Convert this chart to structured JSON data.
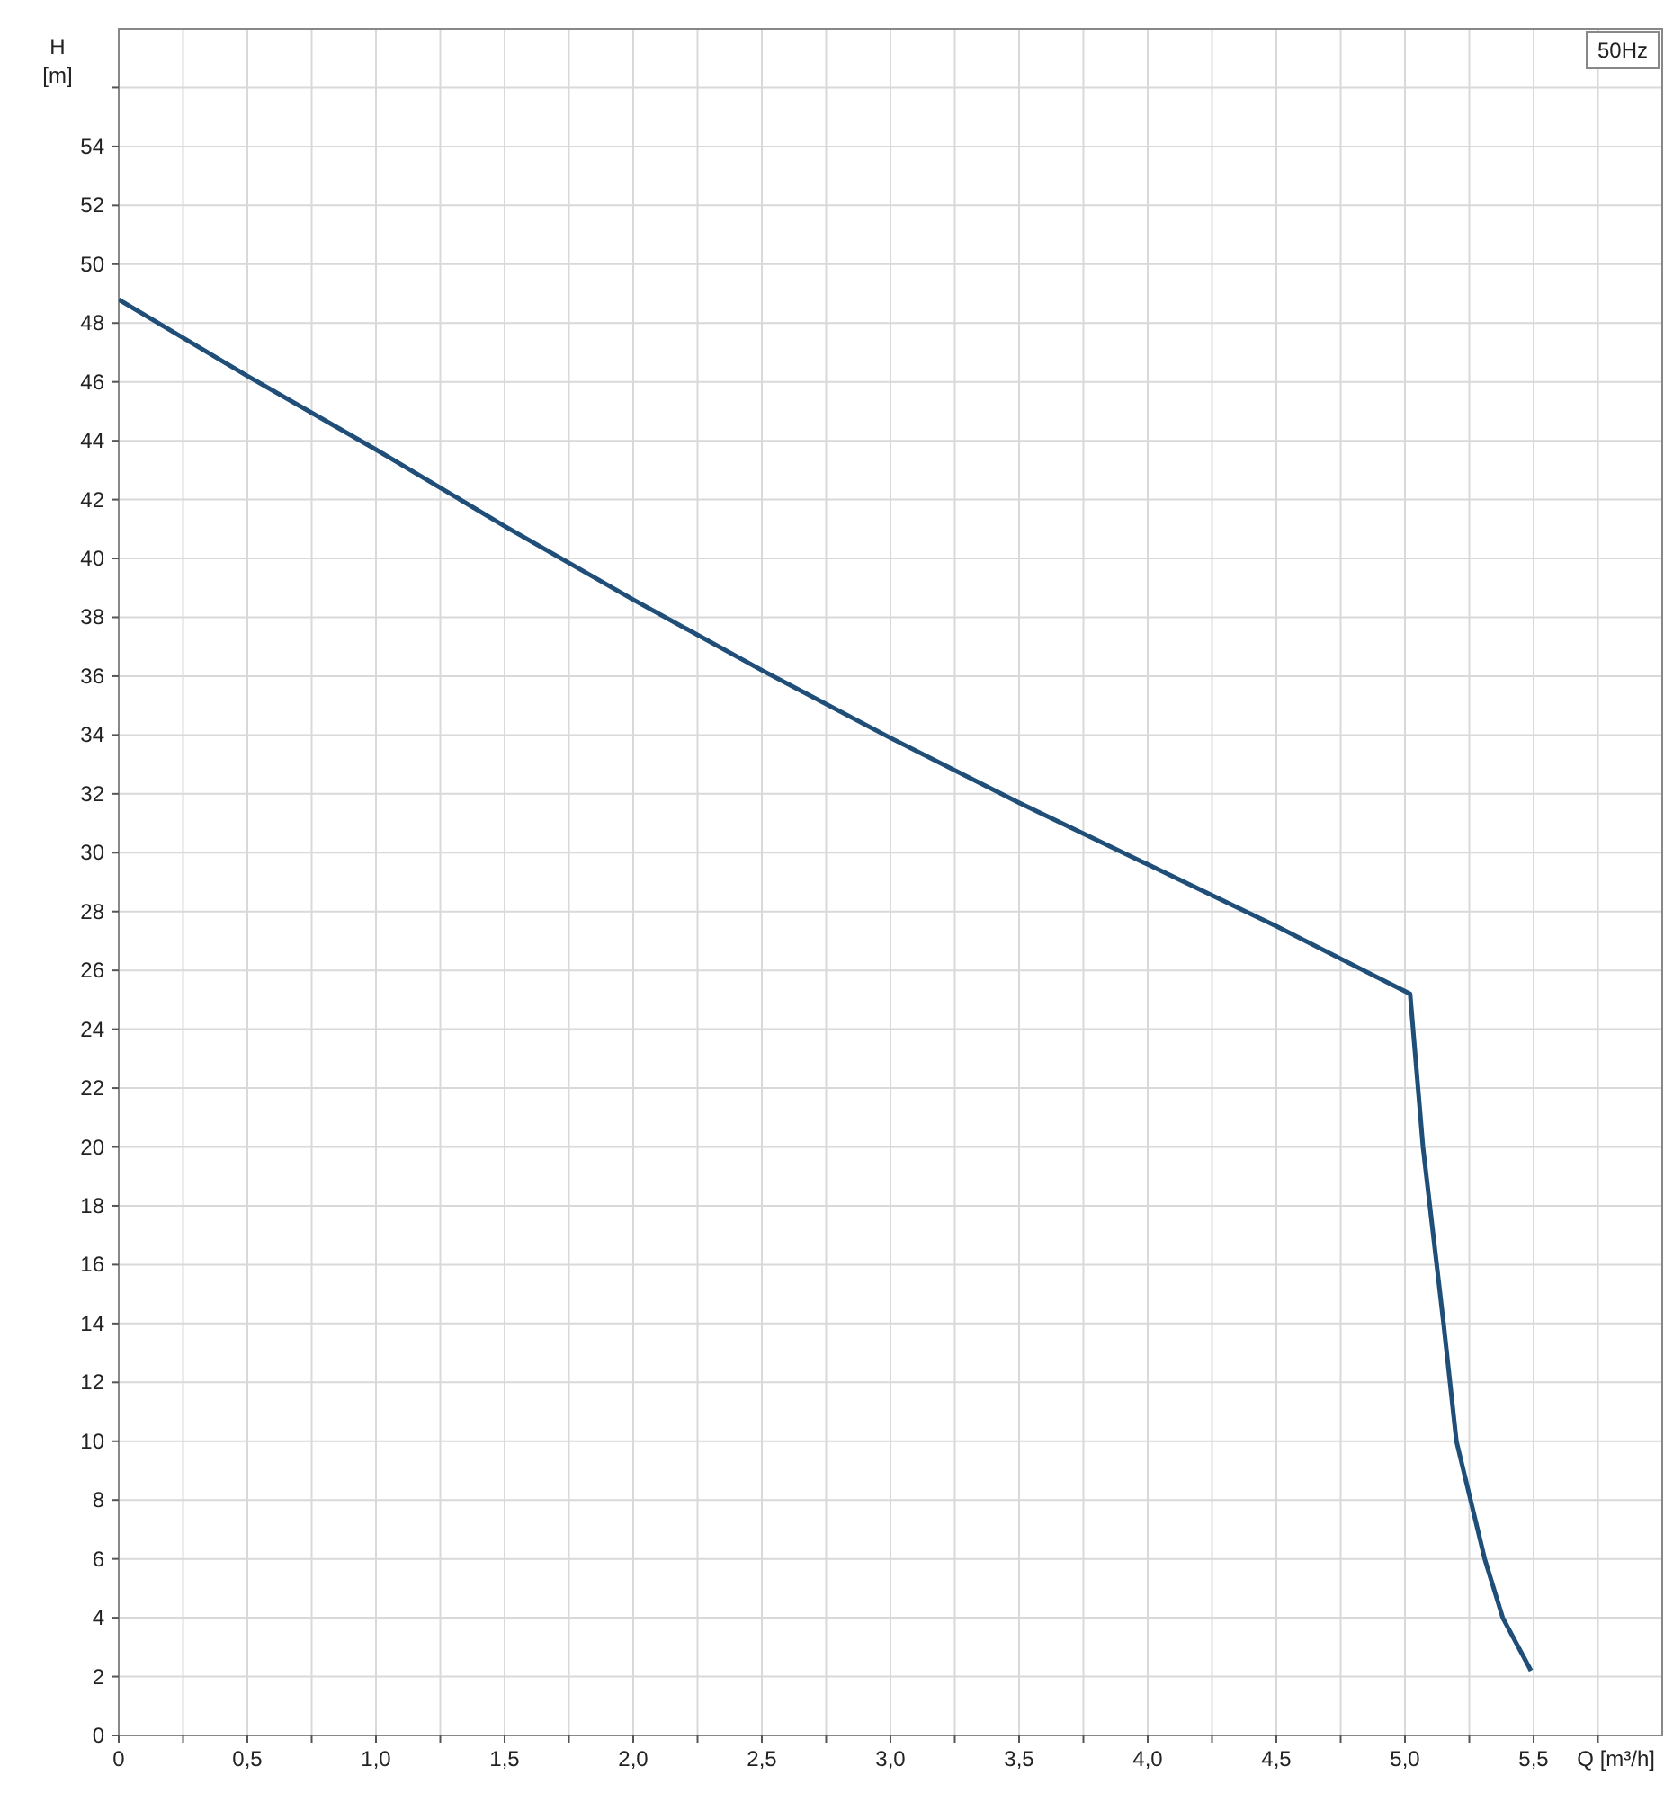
{
  "chart_data": {
    "type": "line",
    "xlabel": "Q [m³/h]",
    "ylabel": "H [m]",
    "annotations": [
      "50Hz"
    ],
    "x": [
      0,
      0.5,
      1.0,
      1.5,
      2.0,
      2.5,
      3.0,
      3.5,
      4.0,
      4.5,
      5.02,
      5.07,
      5.15,
      5.2,
      5.31,
      5.38,
      5.49
    ],
    "series": [
      {
        "color": "#1f4e79",
        "values": [
          48.8,
          46.2,
          43.7,
          41.1,
          38.6,
          36.2,
          33.9,
          31.7,
          29.6,
          27.5,
          25.2,
          20,
          14,
          10,
          6,
          4,
          2.2
        ]
      }
    ],
    "xlim": [
      0,
      6.0
    ],
    "ylim": [
      0,
      58
    ],
    "xticks": [
      {
        "value": 0,
        "label": "0"
      },
      {
        "value": 0.25,
        "label": null
      },
      {
        "value": 0.5,
        "label": "0,5"
      },
      {
        "value": 0.75,
        "label": null
      },
      {
        "value": 1,
        "label": "1,0"
      },
      {
        "value": 1.25,
        "label": null
      },
      {
        "value": 1.5,
        "label": "1,5"
      },
      {
        "value": 1.75,
        "label": null
      },
      {
        "value": 2,
        "label": "2,0"
      },
      {
        "value": 2.25,
        "label": null
      },
      {
        "value": 2.5,
        "label": "2,5"
      },
      {
        "value": 2.75,
        "label": null
      },
      {
        "value": 3,
        "label": "3,0"
      },
      {
        "value": 3.25,
        "label": null
      },
      {
        "value": 3.5,
        "label": "3,5"
      },
      {
        "value": 3.75,
        "label": null
      },
      {
        "value": 4,
        "label": "4,0"
      },
      {
        "value": 4.25,
        "label": null
      },
      {
        "value": 4.5,
        "label": "4,5"
      },
      {
        "value": 4.75,
        "label": null
      },
      {
        "value": 5,
        "label": "5,0"
      },
      {
        "value": 5.25,
        "label": null
      },
      {
        "value": 5.5,
        "label": "5,5"
      },
      {
        "value": 5.75,
        "label": null
      }
    ],
    "yticks": [
      0,
      2,
      4,
      6,
      8,
      10,
      12,
      14,
      16,
      18,
      20,
      22,
      24,
      26,
      28,
      30,
      32,
      34,
      36,
      38,
      40,
      42,
      44,
      46,
      48,
      50,
      52,
      54,
      {
        "value": 56,
        "label": null
      }
    ],
    "grid": true,
    "line_style": "solid"
  }
}
